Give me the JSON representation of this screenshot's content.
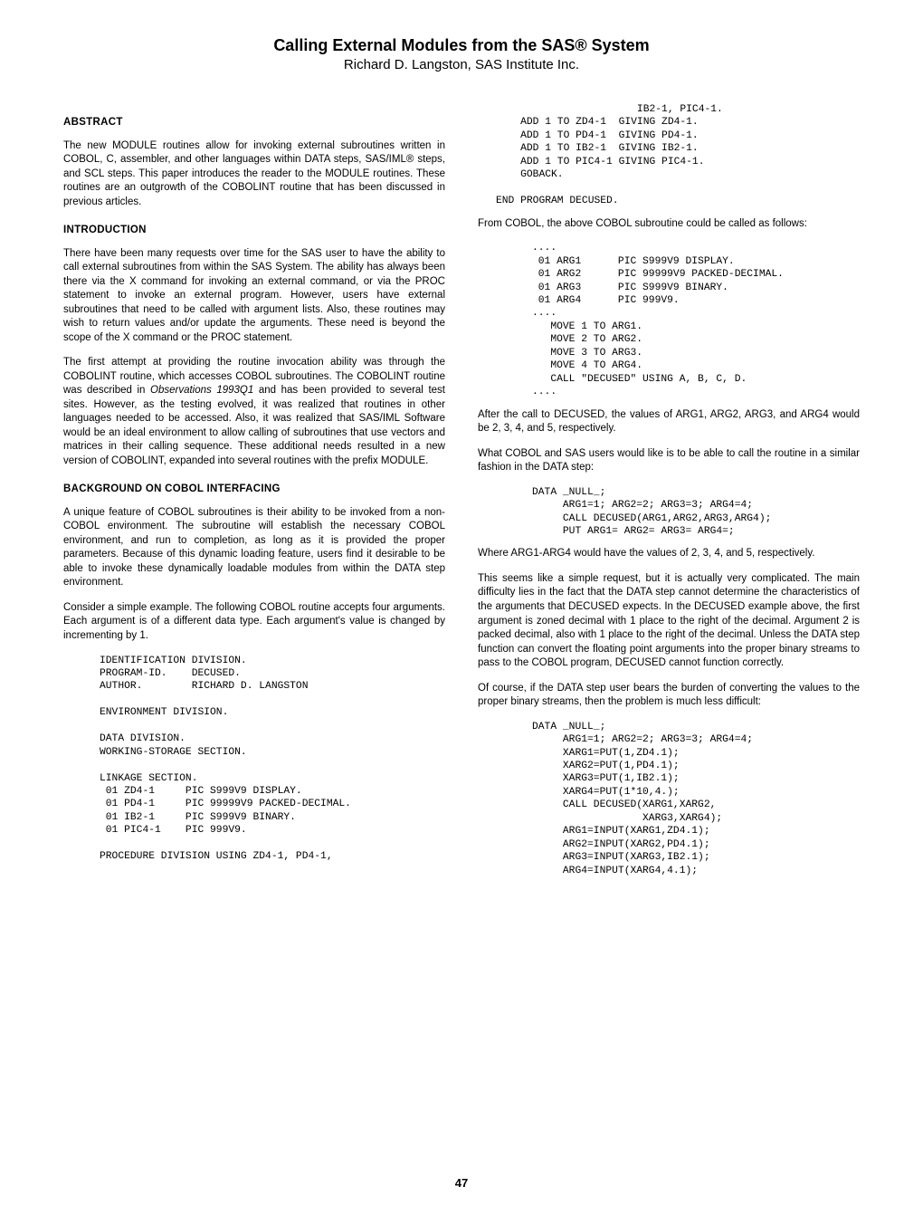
{
  "title": "Calling External Modules from the SAS® System",
  "subtitle": "Richard D. Langston, SAS Institute Inc.",
  "pageNumber": "47",
  "left": {
    "abstractHead": "ABSTRACT",
    "abstractPara": "The new MODULE routines allow for invoking external subroutines written in COBOL, C, assembler, and other languages within DATA steps, SAS/IML® steps, and SCL steps. This paper introduces the reader to the MODULE routines. These routines are an outgrowth of the COBOLINT routine that has been discussed in previous articles.",
    "introHead": "INTRODUCTION",
    "introP1": "There have been many requests over time for the SAS user to have the ability to call external subroutines from within the SAS System. The ability has always been there via the X command for invoking an external command, or via the PROC statement to invoke an external program. However, users have external subroutines that need to be called with argument lists. Also, these routines may wish to return values and/or update the arguments. These need is beyond the scope of the X command or the PROC statement.",
    "introP2a": "The first attempt at providing the routine invocation ability was through the COBOLINT routine, which accesses COBOL subroutines. The COBOLINT routine was described in ",
    "introP2Emph": "Observations 1993Q1",
    "introP2b": " and has been provided to several test sites. However, as the testing evolved, it was realized that routines in other languages needed to be accessed. Also, it was realized that SAS/IML Software would be an ideal environment to allow calling of subroutines that use vectors and matrices in their calling sequence. These additional needs resulted in a new version of COBOLINT, expanded into several routines with the prefix MODULE.",
    "bgHead": "BACKGROUND ON COBOL INTERFACING",
    "bgP1": "A unique feature of COBOL subroutines is their ability to be invoked from a non-COBOL environment. The subroutine will establish the necessary COBOL environment, and run to completion, as long as it is provided the proper parameters. Because of this dynamic loading feature, users find it desirable to be able to invoke these dynamically loadable modules from within the DATA step environment.",
    "bgP2": "Consider a simple example. The following COBOL routine accepts four arguments. Each argument is of a different data type. Each argument's value is changed by incrementing by 1.",
    "code1": "IDENTIFICATION DIVISION.\nPROGRAM-ID.    DECUSED.\nAUTHOR.        RICHARD D. LANGSTON\n\nENVIRONMENT DIVISION.\n\nDATA DIVISION.\nWORKING-STORAGE SECTION.\n\nLINKAGE SECTION.\n 01 ZD4-1     PIC S999V9 DISPLAY.\n 01 PD4-1     PIC 99999V9 PACKED-DECIMAL.\n 01 IB2-1     PIC S999V9 BINARY.\n 01 PIC4-1    PIC 999V9.\n\nPROCEDURE DIVISION USING ZD4-1, PD4-1,"
  },
  "right": {
    "code2": "                       IB2-1, PIC4-1.\n    ADD 1 TO ZD4-1  GIVING ZD4-1.\n    ADD 1 TO PD4-1  GIVING PD4-1.\n    ADD 1 TO IB2-1  GIVING IB2-1.\n    ADD 1 TO PIC4-1 GIVING PIC4-1.\n    GOBACK.\n\nEND PROGRAM DECUSED.",
    "p1": "From COBOL, the above COBOL subroutine could be called as follows:",
    "code3": "....\n 01 ARG1      PIC S999V9 DISPLAY.\n 01 ARG2      PIC 99999V9 PACKED-DECIMAL.\n 01 ARG3      PIC S999V9 BINARY.\n 01 ARG4      PIC 999V9.\n....\n   MOVE 1 TO ARG1.\n   MOVE 2 TO ARG2.\n   MOVE 3 TO ARG3.\n   MOVE 4 TO ARG4.\n   CALL \"DECUSED\" USING A, B, C, D.\n....",
    "p2": "After the call to DECUSED, the values of ARG1, ARG2, ARG3, and ARG4 would be 2, 3, 4, and 5, respectively.",
    "p3": "What COBOL and SAS users would like is to be able to call the routine in a similar fashion in the DATA step:",
    "code4": "DATA _NULL_;\n     ARG1=1; ARG2=2; ARG3=3; ARG4=4;\n     CALL DECUSED(ARG1,ARG2,ARG3,ARG4);\n     PUT ARG1= ARG2= ARG3= ARG4=;",
    "p4": "Where ARG1-ARG4 would have the values of 2, 3, 4, and 5, respectively.",
    "p5": "This seems like a simple request, but it is actually very complicated. The main difficulty lies in the fact that the DATA step cannot determine the characteristics of the arguments that DECUSED expects. In the DECUSED example above, the first argument is zoned decimal with 1 place to the right of the decimal. Argument 2 is packed decimal, also with 1 place to the right of the decimal. Unless the DATA step function can convert the floating point arguments into the proper binary streams to pass to the COBOL program, DECUSED cannot function correctly.",
    "p6": "Of course, if the DATA step user bears the burden of converting the values to the proper binary streams, then the problem is much less difficult:",
    "code5": "DATA _NULL_;\n     ARG1=1; ARG2=2; ARG3=3; ARG4=4;\n     XARG1=PUT(1,ZD4.1);\n     XARG2=PUT(1,PD4.1);\n     XARG3=PUT(1,IB2.1);\n     XARG4=PUT(1*10,4.);\n     CALL DECUSED(XARG1,XARG2,\n                  XARG3,XARG4);\n     ARG1=INPUT(XARG1,ZD4.1);\n     ARG2=INPUT(XARG2,PD4.1);\n     ARG3=INPUT(XARG3,IB2.1);\n     ARG4=INPUT(XARG4,4.1);"
  }
}
